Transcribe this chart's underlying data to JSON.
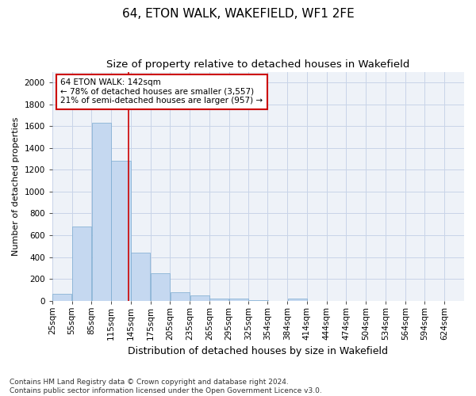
{
  "title": "64, ETON WALK, WAKEFIELD, WF1 2FE",
  "subtitle": "Size of property relative to detached houses in Wakefield",
  "xlabel": "Distribution of detached houses by size in Wakefield",
  "ylabel": "Number of detached properties",
  "bar_color": "#c5d8f0",
  "bar_edge_color": "#7aaad0",
  "vline_color": "#cc0000",
  "vline_x": 142,
  "annotation_text": "64 ETON WALK: 142sqm\n← 78% of detached houses are smaller (3,557)\n21% of semi-detached houses are larger (957) →",
  "annotation_box_color": "#ffffff",
  "annotation_box_edge_color": "#cc0000",
  "grid_color": "#c8d4e8",
  "background_color": "#ffffff",
  "plot_bg_color": "#eef2f8",
  "categories": [
    "25sqm",
    "55sqm",
    "85sqm",
    "115sqm",
    "145sqm",
    "175sqm",
    "205sqm",
    "235sqm",
    "265sqm",
    "295sqm",
    "325sqm",
    "354sqm",
    "384sqm",
    "414sqm",
    "444sqm",
    "474sqm",
    "504sqm",
    "534sqm",
    "564sqm",
    "594sqm",
    "624sqm"
  ],
  "bin_starts": [
    25,
    55,
    85,
    115,
    145,
    175,
    205,
    235,
    265,
    295,
    325,
    354,
    384,
    414,
    444,
    474,
    504,
    534,
    564,
    594,
    624
  ],
  "bin_width": 30,
  "values": [
    60,
    680,
    1630,
    1280,
    440,
    250,
    80,
    45,
    22,
    22,
    5,
    0,
    22,
    0,
    0,
    0,
    0,
    0,
    0,
    0,
    0
  ],
  "ylim": [
    0,
    2100
  ],
  "yticks": [
    0,
    200,
    400,
    600,
    800,
    1000,
    1200,
    1400,
    1600,
    1800,
    2000
  ],
  "footnote": "Contains HM Land Registry data © Crown copyright and database right 2024.\nContains public sector information licensed under the Open Government Licence v3.0.",
  "title_fontsize": 11,
  "subtitle_fontsize": 9.5,
  "xlabel_fontsize": 9,
  "ylabel_fontsize": 8,
  "tick_fontsize": 7.5,
  "annotation_fontsize": 7.5,
  "footnote_fontsize": 6.5
}
